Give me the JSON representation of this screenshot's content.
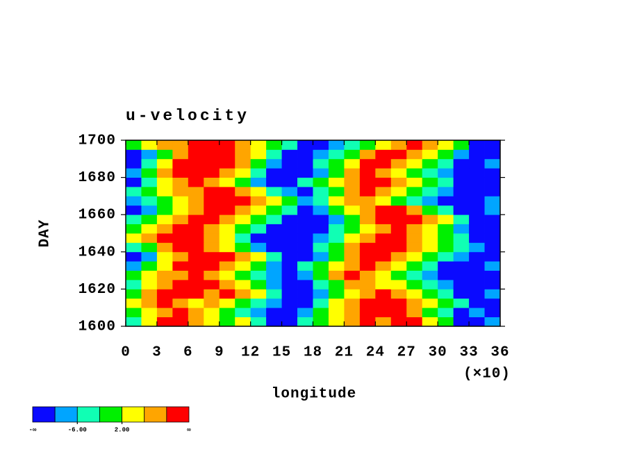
{
  "chart_data": {
    "type": "contour",
    "title": "u-velocity",
    "x_label": "longitude",
    "y_label": "DAY",
    "x_scale_label": "(×10)",
    "xlim": [
      0,
      36
    ],
    "ylim": [
      1600,
      1700
    ],
    "xticks": [
      0,
      3,
      6,
      9,
      12,
      15,
      18,
      21,
      24,
      27,
      30,
      33,
      36
    ],
    "yticks": [
      1600,
      1620,
      1640,
      1660,
      1680,
      1700
    ],
    "x": [
      0.75,
      2.25,
      3.75,
      5.25,
      6.75,
      8.25,
      9.75,
      11.25,
      12.75,
      14.25,
      15.75,
      17.25,
      18.75,
      20.25,
      21.75,
      23.25,
      24.75,
      26.25,
      27.75,
      29.25,
      30.75,
      32.25,
      33.75,
      35.25
    ],
    "y": [
      1602.5,
      1607.5,
      1612.5,
      1617.5,
      1622.5,
      1627.5,
      1632.5,
      1637.5,
      1642.5,
      1647.5,
      1652.5,
      1657.5,
      1662.5,
      1667.5,
      1672.5,
      1677.5,
      1682.5,
      1687.5,
      1692.5,
      1697.5
    ],
    "z": [
      [
        -4,
        4,
        12,
        12,
        8,
        4,
        0,
        4,
        -4,
        -12,
        -12,
        -4,
        0,
        4,
        8,
        12,
        8,
        12,
        12,
        4,
        0,
        -12,
        -12,
        -8
      ],
      [
        0,
        4,
        8,
        12,
        8,
        4,
        0,
        -4,
        -8,
        -12,
        -12,
        -8,
        0,
        4,
        8,
        12,
        12,
        12,
        8,
        0,
        -4,
        -12,
        -8,
        -12
      ],
      [
        4,
        8,
        12,
        8,
        4,
        8,
        4,
        0,
        -4,
        -8,
        -12,
        -12,
        -4,
        4,
        8,
        12,
        12,
        12,
        8,
        4,
        0,
        -4,
        -12,
        -12
      ],
      [
        0,
        8,
        12,
        12,
        12,
        8,
        12,
        8,
        4,
        -4,
        -12,
        -12,
        -8,
        0,
        4,
        8,
        12,
        8,
        4,
        0,
        -4,
        -12,
        -12,
        -8
      ],
      [
        -4,
        4,
        8,
        12,
        12,
        12,
        8,
        4,
        0,
        -8,
        -12,
        -12,
        -4,
        0,
        8,
        8,
        4,
        4,
        0,
        -4,
        -8,
        -12,
        -12,
        -12
      ],
      [
        0,
        4,
        8,
        8,
        12,
        8,
        4,
        0,
        -4,
        -8,
        -12,
        -8,
        0,
        8,
        12,
        8,
        4,
        0,
        -4,
        -8,
        -12,
        -12,
        -12,
        -12
      ],
      [
        -8,
        0,
        4,
        12,
        12,
        12,
        8,
        4,
        0,
        -8,
        -12,
        -4,
        0,
        4,
        8,
        12,
        8,
        4,
        0,
        -4,
        -12,
        -12,
        -12,
        -8
      ],
      [
        -12,
        -8,
        4,
        8,
        12,
        12,
        12,
        8,
        4,
        -4,
        -12,
        -12,
        -8,
        0,
        8,
        12,
        12,
        8,
        4,
        0,
        -4,
        -8,
        -12,
        -12
      ],
      [
        -4,
        0,
        8,
        12,
        12,
        8,
        4,
        0,
        -8,
        -12,
        -12,
        -12,
        -4,
        0,
        8,
        12,
        12,
        12,
        8,
        4,
        0,
        -4,
        -8,
        -12
      ],
      [
        4,
        8,
        12,
        12,
        12,
        8,
        4,
        -4,
        -12,
        -12,
        -12,
        -12,
        -8,
        -4,
        4,
        8,
        12,
        12,
        8,
        4,
        0,
        -4,
        -12,
        -12
      ],
      [
        0,
        4,
        8,
        12,
        12,
        8,
        4,
        0,
        -4,
        -12,
        -12,
        -12,
        -12,
        -4,
        0,
        4,
        8,
        12,
        8,
        4,
        0,
        -8,
        -12,
        -12
      ],
      [
        -4,
        0,
        4,
        8,
        12,
        12,
        8,
        4,
        0,
        -4,
        -12,
        -12,
        -12,
        -8,
        0,
        8,
        12,
        12,
        12,
        8,
        4,
        -4,
        -12,
        -12
      ],
      [
        -12,
        -8,
        0,
        4,
        8,
        12,
        12,
        8,
        4,
        0,
        -4,
        -12,
        -8,
        0,
        4,
        8,
        12,
        12,
        8,
        0,
        -4,
        -12,
        -12,
        -8
      ],
      [
        -8,
        -4,
        0,
        4,
        8,
        12,
        12,
        12,
        8,
        4,
        0,
        -8,
        -4,
        4,
        8,
        8,
        4,
        0,
        -4,
        -8,
        -12,
        -12,
        -12,
        -8
      ],
      [
        -4,
        0,
        4,
        8,
        8,
        12,
        12,
        8,
        4,
        -4,
        -8,
        -12,
        -4,
        0,
        8,
        12,
        8,
        4,
        0,
        -4,
        -8,
        -12,
        -12,
        -12
      ],
      [
        -12,
        -4,
        4,
        8,
        12,
        8,
        4,
        0,
        -8,
        -12,
        -12,
        -4,
        0,
        4,
        8,
        12,
        12,
        8,
        4,
        0,
        -4,
        -12,
        -12,
        -12
      ],
      [
        -8,
        0,
        8,
        12,
        12,
        12,
        8,
        4,
        -4,
        -12,
        -12,
        -12,
        -8,
        0,
        8,
        12,
        8,
        4,
        0,
        -4,
        -8,
        -12,
        -12,
        -12
      ],
      [
        -12,
        -4,
        4,
        12,
        12,
        12,
        12,
        8,
        0,
        -8,
        -12,
        -12,
        -4,
        0,
        4,
        12,
        12,
        8,
        4,
        0,
        -4,
        -12,
        -12,
        -8
      ],
      [
        -12,
        -8,
        0,
        8,
        12,
        12,
        12,
        8,
        4,
        -4,
        -12,
        -12,
        -8,
        -4,
        0,
        8,
        12,
        12,
        8,
        4,
        0,
        -8,
        -12,
        -12
      ],
      [
        0,
        4,
        8,
        8,
        12,
        12,
        12,
        8,
        4,
        0,
        -4,
        -12,
        -12,
        -8,
        -4,
        0,
        4,
        8,
        12,
        8,
        4,
        0,
        -12,
        -12
      ]
    ],
    "colorbar": {
      "colors": [
        "#0a0aff",
        "#00a5ff",
        "#10ffb4",
        "#00f000",
        "#ffff00",
        "#ffa500",
        "#ff0000"
      ],
      "levels": [
        -10,
        -6,
        -2,
        2,
        6,
        10
      ],
      "ticks": [
        {
          "value": -6,
          "label": "-6.00"
        },
        {
          "value": 2,
          "label": "2.00"
        }
      ],
      "low_label": "-∞",
      "high_label": "∞"
    }
  }
}
